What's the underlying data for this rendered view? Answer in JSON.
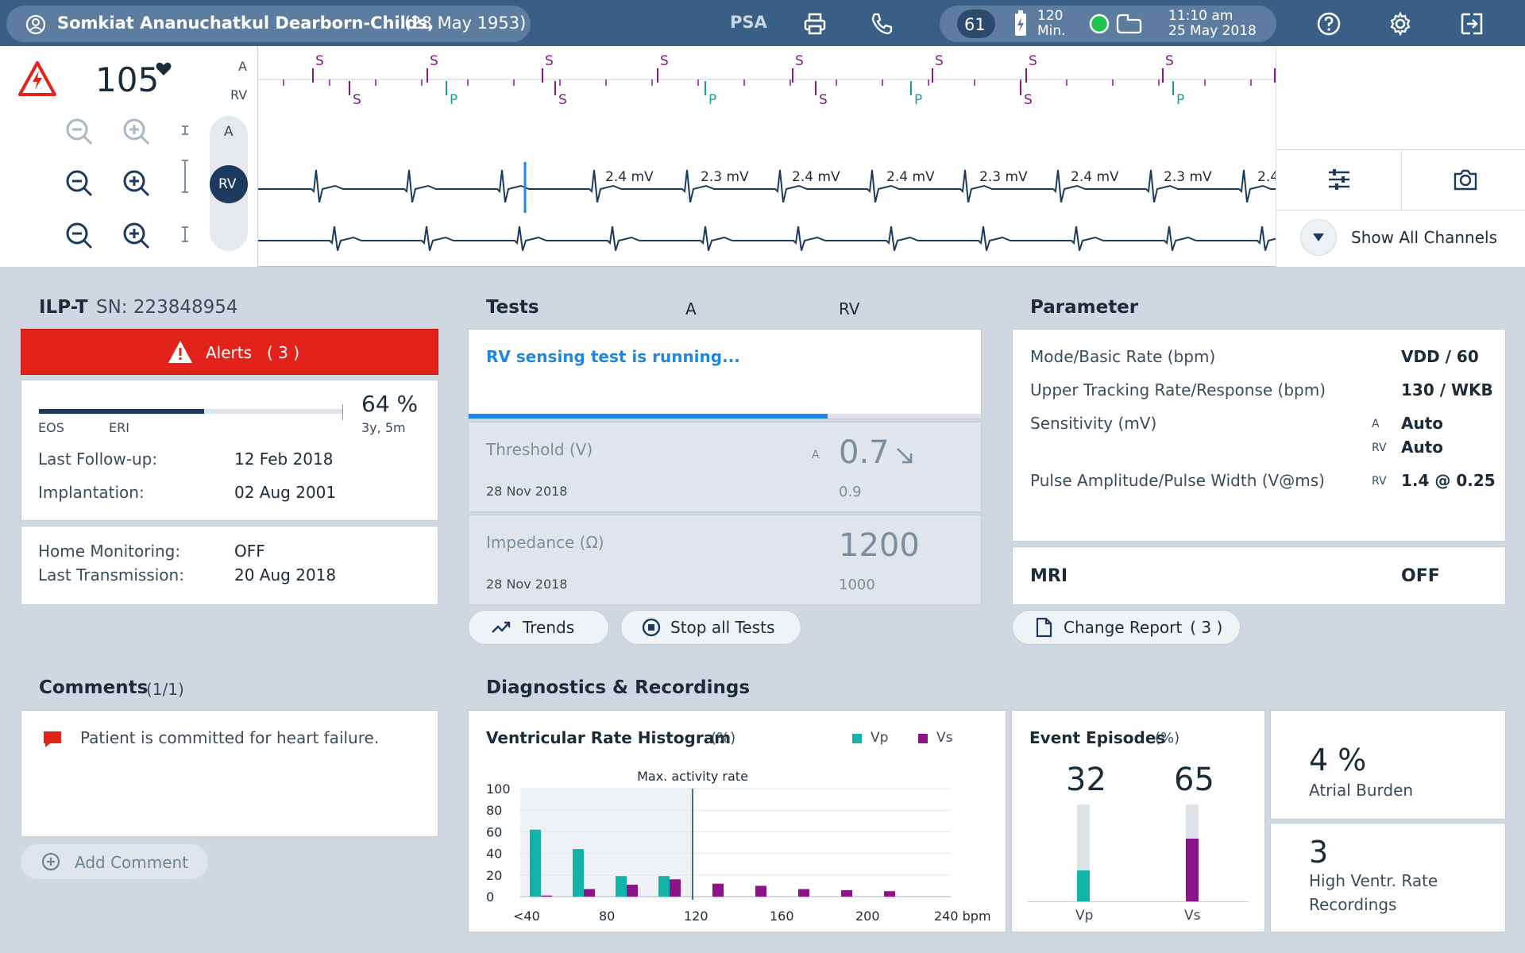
{
  "header": {
    "patient_name": "Somkiat Ananuchatkul Dearborn-Childs,",
    "patient_dob": "(28 May 1953)",
    "psa_label": "PSA",
    "battery_count": "61",
    "battery_minutes": "120",
    "battery_min_unit": "Min.",
    "time": "11:10 am",
    "date": "25 May 2018"
  },
  "ecg": {
    "heart_rate": "105",
    "lead_a_label": "A",
    "lead_rv_label": "RV",
    "toggle_a": "A",
    "toggle_rv": "RV",
    "marker_top_s": "S",
    "marker_bottom_s": "S",
    "marker_bottom_p": "P",
    "amplitudes": [
      "2.4 mV",
      "2.3 mV",
      "2.4 mV",
      "2.4 mV",
      "2.3 mV",
      "2.4 mV",
      "2.3 mV",
      "2.4"
    ],
    "show_all_channels": "Show All Channels"
  },
  "device": {
    "model": "ILP-T",
    "serial": "SN: 223848954",
    "alerts_label": "Alerts",
    "alerts_count": "( 3 )",
    "battery_percent": "64 %",
    "battery_remaining": "3y, 5m",
    "battery_fraction": 0.64,
    "eos_label": "EOS",
    "eri_label": "ERI",
    "last_followup_label": "Last Follow-up:",
    "last_followup_value": "12 Feb 2018",
    "implantation_label": "Implantation:",
    "implantation_value": "02 Aug 2001",
    "home_monitoring_label": "Home Monitoring:",
    "home_monitoring_value": "OFF",
    "last_transmission_label": "Last Transmission:",
    "last_transmission_value": "20 Aug 2018"
  },
  "tests": {
    "title": "Tests",
    "col_a": "A",
    "col_rv": "RV",
    "running_text": "RV sensing test is running...",
    "progress_fraction": 0.7,
    "threshold_label": "Threshold (V)",
    "threshold_date": "28 Nov 2018",
    "threshold_chamber": "A",
    "threshold_value": "0.7",
    "threshold_prev": "0.9",
    "impedance_label": "Impedance (Ω)",
    "impedance_date": "28 Nov 2018",
    "impedance_value": "1200",
    "impedance_prev": "1000",
    "trends_button": "Trends",
    "stop_button": "Stop all Tests"
  },
  "parameter": {
    "title": "Parameter",
    "mode_label": "Mode/Basic Rate (bpm)",
    "mode_value": "VDD / 60",
    "utr_label": "Upper Tracking Rate/Response (bpm)",
    "utr_value": "130 / WKB",
    "sens_label": "Sensitivity (mV)",
    "sens_a_ch": "A",
    "sens_a_value": "Auto",
    "sens_rv_ch": "RV",
    "sens_rv_value": "Auto",
    "pulse_label": "Pulse Amplitude/Pulse Width (V@ms)",
    "pulse_ch": "RV",
    "pulse_value": "1.4 @ 0.25",
    "mri_label": "MRI",
    "mri_value": "OFF",
    "change_report_label": "Change Report",
    "change_report_count": "( 3 )"
  },
  "comments": {
    "title": "Comments",
    "count": "(1/1)",
    "items": [
      "Patient is committed for heart failure."
    ],
    "add_button": "Add Comment"
  },
  "diagnostics": {
    "title": "Diagnostics & Recordings",
    "histogram_title": "Ventricular Rate Histogram",
    "histogram_unit": "(%)",
    "legend_vp": "Vp",
    "legend_vs": "Vs",
    "max_activity_label": "Max. activity rate",
    "event_title": "Event Episodes",
    "event_unit": "(%)",
    "event_vp_value": "32",
    "event_vs_value": "65",
    "event_vp_label": "Vp",
    "event_vs_label": "Vs",
    "atrial_burden_value": "4 %",
    "atrial_burden_label": "Atrial Burden",
    "hvr_value": "3",
    "hvr_label_1": "High Ventr. Rate",
    "hvr_label_2": "Recordings"
  },
  "colors": {
    "header_bg": "#3a5f86",
    "alert_red": "#e3231b",
    "vp_teal": "#12b3a8",
    "vs_purple": "#8c1488",
    "progress_blue": "#1e88e5",
    "navy": "#1c3a5e"
  },
  "chart_data": {
    "type": "bar",
    "title": "Ventricular Rate Histogram (%)",
    "xlabel": "bpm",
    "ylabel": "",
    "x_tick_labels": [
      "<40",
      "80",
      "120",
      "160",
      "200",
      "240 bpm"
    ],
    "y_tick_labels": [
      "100",
      "80",
      "60",
      "40",
      "20",
      "0"
    ],
    "ylim": [
      0,
      100
    ],
    "categories": [
      "40",
      "60",
      "80",
      "100",
      "120",
      "140",
      "160",
      "180",
      "200"
    ],
    "series": [
      {
        "name": "Vp",
        "values": [
          62,
          44,
          19,
          19,
          0,
          0,
          0,
          0,
          0
        ]
      },
      {
        "name": "Vs",
        "values": [
          1,
          7,
          11,
          16,
          12,
          10,
          7,
          6,
          5
        ]
      }
    ],
    "max_activity_rate": 120,
    "event_episodes": {
      "Vp": 32,
      "Vs": 65
    }
  }
}
